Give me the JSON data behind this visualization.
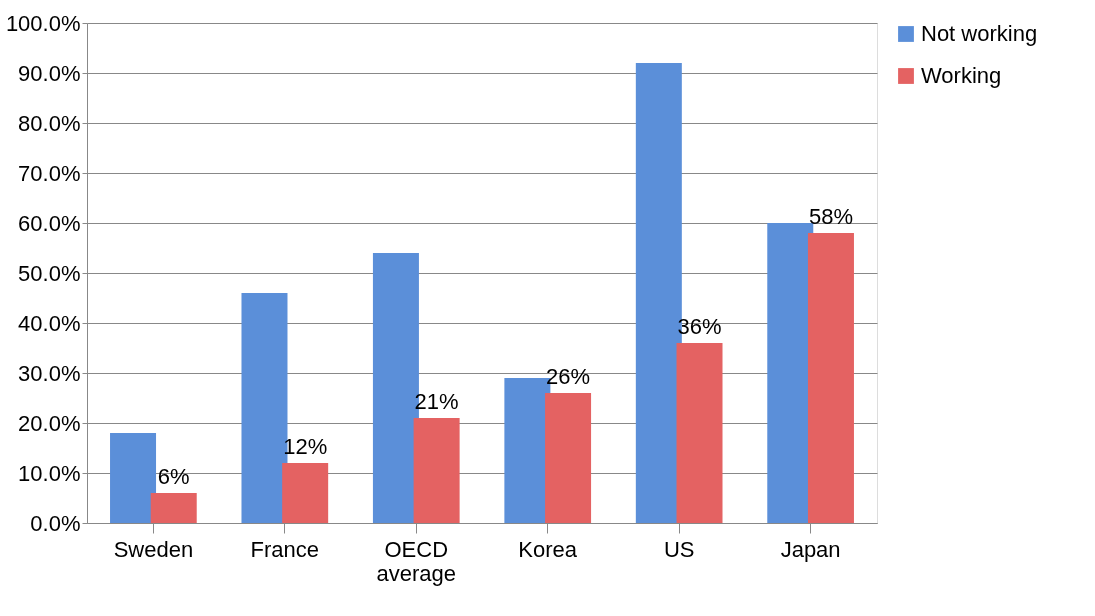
{
  "chart_data": {
    "type": "bar",
    "categories": [
      "Sweden",
      "France",
      "OECD average",
      "Korea",
      "US",
      "Japan"
    ],
    "series": [
      {
        "name": "Not working",
        "color": "#5b8fd9",
        "values": [
          18,
          46,
          54,
          29,
          92,
          60
        ]
      },
      {
        "name": "Working",
        "color": "#e46262",
        "values": [
          6,
          12,
          21,
          26,
          36,
          58
        ],
        "value_labels": [
          "6%",
          "12%",
          "21%",
          "26%",
          "36%",
          "58%"
        ]
      }
    ],
    "ylim": [
      0,
      100
    ],
    "yticks": [
      {
        "value": 0,
        "label": "0.0%"
      },
      {
        "value": 10,
        "label": "10.0%"
      },
      {
        "value": 20,
        "label": "20.0%"
      },
      {
        "value": 30,
        "label": "30.0%"
      },
      {
        "value": 40,
        "label": "40.0%"
      },
      {
        "value": 50,
        "label": "50.0%"
      },
      {
        "value": 60,
        "label": "60.0%"
      },
      {
        "value": 70,
        "label": "70.0%"
      },
      {
        "value": 80,
        "label": "80.0%"
      },
      {
        "value": 90,
        "label": "90.0%"
      },
      {
        "value": 100,
        "label": "100.0%"
      }
    ],
    "grid": "y",
    "legend": "right"
  }
}
